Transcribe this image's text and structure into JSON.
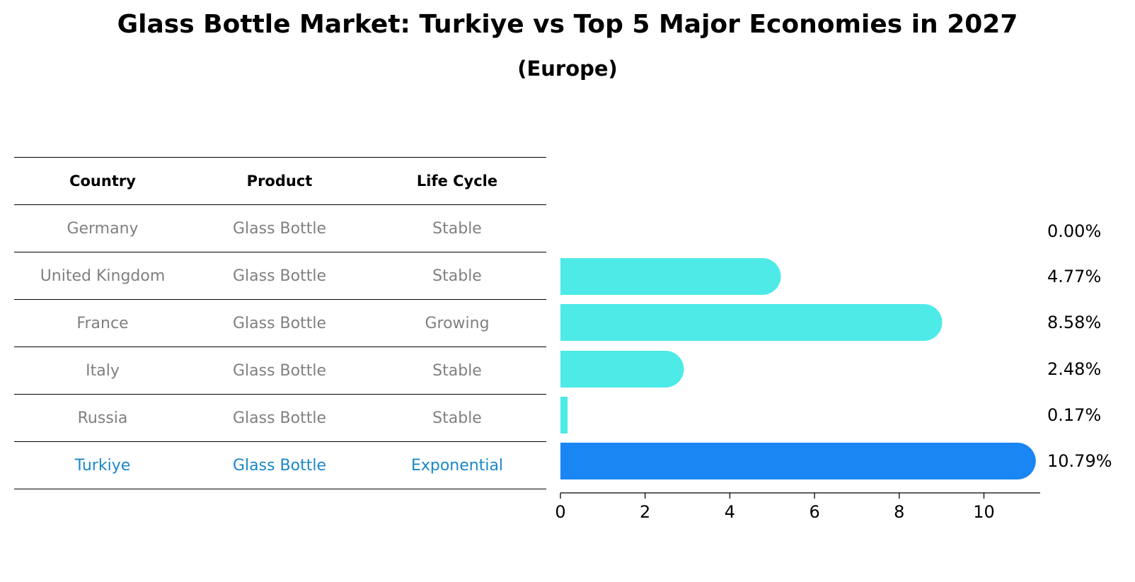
{
  "header": {
    "title": "Glass Bottle Market: Turkiye vs Top 5 Major Economies in 2027",
    "subtitle": "(Europe)"
  },
  "table": {
    "columns": [
      "Country",
      "Product",
      "Life Cycle"
    ],
    "rows": [
      {
        "country": "Germany",
        "product": "Glass Bottle",
        "life_cycle": "Stable"
      },
      {
        "country": "United Kingdom",
        "product": "Glass Bottle",
        "life_cycle": "Stable"
      },
      {
        "country": "France",
        "product": "Glass Bottle",
        "life_cycle": "Growing"
      },
      {
        "country": "Italy",
        "product": "Glass Bottle",
        "life_cycle": "Stable"
      },
      {
        "country": "Russia",
        "product": "Glass Bottle",
        "life_cycle": "Stable"
      },
      {
        "country": "Turkiye",
        "product": "Glass Bottle",
        "life_cycle": "Exponential"
      }
    ],
    "highlight_color": "#1a87c9",
    "text_color": "#808080"
  },
  "chart_data": {
    "type": "bar",
    "orientation": "horizontal",
    "categories": [
      "Germany",
      "United Kingdom",
      "France",
      "Italy",
      "Russia",
      "Turkiye"
    ],
    "values": [
      0.0,
      4.77,
      8.58,
      2.48,
      0.17,
      10.79
    ],
    "data_labels": [
      "0.00%",
      "4.77%",
      "8.58%",
      "2.48%",
      "0.17%",
      "10.79%"
    ],
    "xlim": [
      0,
      11.3
    ],
    "xticks": [
      0,
      2,
      4,
      6,
      8,
      10
    ],
    "grid": false,
    "colors": {
      "default": "#4deae8",
      "highlight": "#1a86f4"
    },
    "highlight_index": 5
  }
}
